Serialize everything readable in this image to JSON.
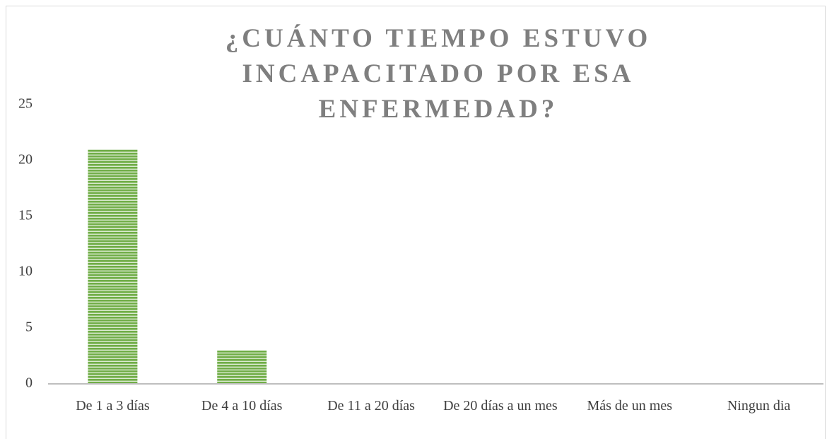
{
  "chart_data": {
    "type": "bar",
    "title": "¿CUÁNTO TIEMPO ESTUVO INCAPACITADO POR ESA ENFERMEDAD?",
    "categories": [
      "De 1 a 3 días",
      "De 4 a 10 días",
      "De 11 a 20 días",
      "De 20 días a un mes",
      "Más de un mes",
      "Ningun dia"
    ],
    "values": [
      21,
      3,
      0,
      0,
      0,
      0
    ],
    "color": "#70ad47",
    "ylim": [
      0,
      25
    ],
    "yticks": [
      0,
      5,
      10,
      15,
      20,
      25
    ],
    "grid": false
  }
}
